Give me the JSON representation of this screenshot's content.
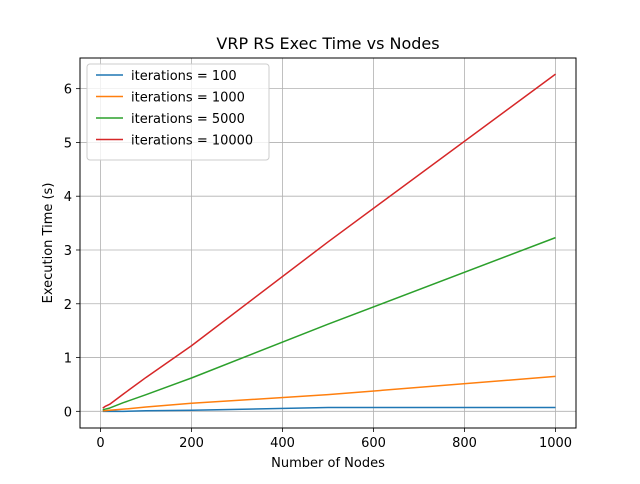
{
  "chart_data": {
    "type": "line",
    "title": "VRP RS Exec Time vs Nodes",
    "xlabel": "Number of Nodes",
    "ylabel": "Execution Time (s)",
    "xlim": [
      -45,
      1045
    ],
    "ylim": [
      -0.31,
      6.57
    ],
    "xticks": [
      0,
      200,
      400,
      600,
      800,
      1000
    ],
    "yticks": [
      0,
      1,
      2,
      3,
      4,
      5,
      6
    ],
    "xtick_labels": [
      "0",
      "200",
      "400",
      "600",
      "800",
      "1000"
    ],
    "ytick_labels": [
      "0",
      "1",
      "2",
      "3",
      "4",
      "5",
      "6"
    ],
    "grid": true,
    "legend_position": "top-left",
    "series": [
      {
        "name": "iterations = 100",
        "color": "#1f77b4",
        "x": [
          5,
          10,
          20,
          50,
          100,
          200,
          500,
          1000
        ],
        "y": [
          0.0,
          0.0,
          0.0,
          0.0,
          0.01,
          0.02,
          0.07,
          0.07
        ]
      },
      {
        "name": "iterations = 1000",
        "color": "#ff7f0e",
        "x": [
          5,
          10,
          20,
          50,
          100,
          200,
          500,
          1000
        ],
        "y": [
          0.01,
          0.01,
          0.02,
          0.04,
          0.08,
          0.15,
          0.31,
          0.65
        ]
      },
      {
        "name": "iterations = 5000",
        "color": "#2ca02c",
        "x": [
          5,
          10,
          20,
          50,
          100,
          200,
          500,
          1000
        ],
        "y": [
          0.03,
          0.04,
          0.06,
          0.16,
          0.31,
          0.62,
          1.62,
          3.23
        ]
      },
      {
        "name": "iterations = 10000",
        "color": "#d62728",
        "x": [
          5,
          10,
          20,
          50,
          100,
          200,
          500,
          1000
        ],
        "y": [
          0.06,
          0.09,
          0.13,
          0.32,
          0.63,
          1.22,
          3.15,
          6.27
        ]
      }
    ]
  }
}
